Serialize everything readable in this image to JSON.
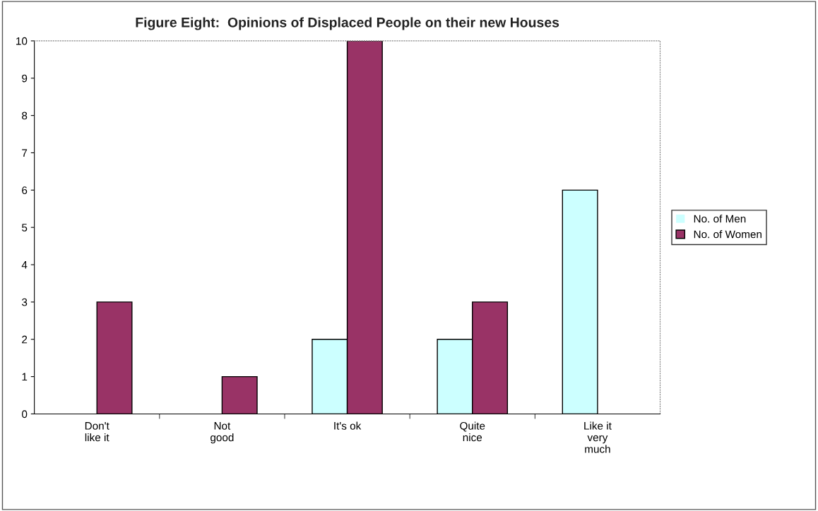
{
  "chart_data": {
    "type": "bar",
    "title": "Figure Eight:  Opinions of Displaced People on their new Houses",
    "categories": [
      "Don't\nlike it",
      "Not\ngood",
      "It's ok",
      "Quite\nnice",
      "Like it\nvery\nmuch"
    ],
    "series": [
      {
        "name": "No. of Men",
        "color": "#ccffff",
        "values": [
          0,
          0,
          2,
          2,
          6
        ]
      },
      {
        "name": "No. of Women",
        "color": "#993366",
        "values": [
          3,
          1,
          10,
          3,
          0
        ]
      }
    ],
    "ylim": [
      0,
      10
    ],
    "yticks": [
      0,
      1,
      2,
      3,
      4,
      5,
      6,
      7,
      8,
      9,
      10
    ],
    "grid": false,
    "legend": "right"
  }
}
